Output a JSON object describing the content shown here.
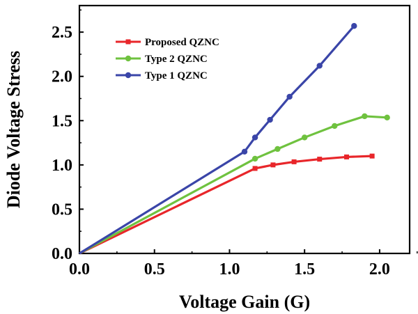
{
  "chart_data": {
    "type": "line",
    "title": "",
    "xlabel": "Voltage Gain (G)",
    "ylabel": "Diode Voltage Stress",
    "xlim": [
      0.0,
      2.2
    ],
    "ylim": [
      0.0,
      2.8
    ],
    "xticks": [
      "0.0",
      "0.5",
      "1.0",
      "1.5",
      "2.0"
    ],
    "yticks": [
      "0.0",
      "0.5",
      "1.0",
      "1.5",
      "2.0",
      "2.5"
    ],
    "grid": false,
    "legend_position": "top-left",
    "series": [
      {
        "name": "Proposed QZNC",
        "color": "#e8262a",
        "marker": "square",
        "x": [
          0.0,
          1.17,
          1.29,
          1.43,
          1.6,
          1.78,
          1.95
        ],
        "y": [
          0.0,
          0.96,
          1.0,
          1.035,
          1.065,
          1.09,
          1.1
        ]
      },
      {
        "name": "Type 2 QZNC",
        "color": "#6fc23f",
        "marker": "circle",
        "x": [
          0.0,
          1.17,
          1.32,
          1.5,
          1.7,
          1.9,
          2.05
        ],
        "y": [
          0.0,
          1.07,
          1.18,
          1.31,
          1.44,
          1.55,
          1.535
        ]
      },
      {
        "name": "Type 1 QZNC",
        "color": "#3a45a8",
        "marker": "circle",
        "x": [
          0.0,
          1.1,
          1.17,
          1.27,
          1.4,
          1.6,
          1.83
        ],
        "y": [
          0.0,
          1.15,
          1.31,
          1.51,
          1.77,
          2.12,
          2.57
        ]
      }
    ]
  }
}
